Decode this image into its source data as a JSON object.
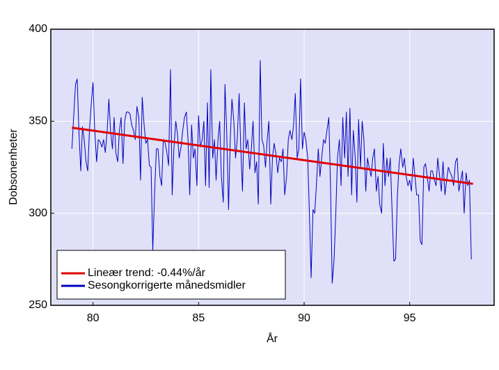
{
  "chart_data": {
    "type": "line",
    "xlabel": "År",
    "ylabel": "Dobsonenheter",
    "xlim": [
      78,
      99
    ],
    "xticks": [
      80,
      85,
      90,
      95
    ],
    "ylim": [
      250,
      400
    ],
    "yticks": [
      250,
      300,
      350,
      400
    ],
    "grid": true,
    "legend": "lower left",
    "background": "#e0e0f8",
    "series": [
      {
        "name": "Lineær trend: -0.44%/år",
        "color": "#e00000",
        "x": [
          79,
          98
        ],
        "values": [
          346.5,
          316
        ]
      },
      {
        "name": "Sesongkorrigerte månedsmidler",
        "color": "#0000c0",
        "x": [
          79,
          79.08,
          79.17,
          79.25,
          79.33,
          79.42,
          79.5,
          79.58,
          79.67,
          79.75,
          79.83,
          79.92,
          80,
          80.08,
          80.17,
          80.25,
          80.33,
          80.42,
          80.5,
          80.58,
          80.67,
          80.75,
          80.83,
          80.92,
          81,
          81.08,
          81.17,
          81.25,
          81.33,
          81.42,
          81.5,
          81.58,
          81.67,
          81.75,
          81.83,
          81.92,
          82,
          82.08,
          82.17,
          82.25,
          82.33,
          82.42,
          82.5,
          82.58,
          82.67,
          82.75,
          82.83,
          82.92,
          83,
          83.08,
          83.17,
          83.25,
          83.33,
          83.42,
          83.5,
          83.58,
          83.67,
          83.75,
          83.83,
          83.92,
          84,
          84.08,
          84.17,
          84.25,
          84.33,
          84.42,
          84.5,
          84.58,
          84.67,
          84.75,
          84.83,
          84.92,
          85,
          85.08,
          85.17,
          85.25,
          85.33,
          85.42,
          85.5,
          85.58,
          85.67,
          85.75,
          85.83,
          85.92,
          86,
          86.08,
          86.17,
          86.25,
          86.33,
          86.42,
          86.5,
          86.58,
          86.67,
          86.75,
          86.83,
          86.92,
          87,
          87.08,
          87.17,
          87.25,
          87.33,
          87.42,
          87.5,
          87.58,
          87.67,
          87.75,
          87.83,
          87.92,
          88,
          88.08,
          88.17,
          88.25,
          88.33,
          88.42,
          88.5,
          88.58,
          88.67,
          88.75,
          88.83,
          88.92,
          89,
          89.08,
          89.17,
          89.25,
          89.33,
          89.42,
          89.5,
          89.58,
          89.67,
          89.75,
          89.83,
          89.92,
          90,
          90.08,
          90.17,
          90.25,
          90.33,
          90.42,
          90.5,
          90.58,
          90.67,
          90.75,
          90.83,
          90.92,
          91,
          91.08,
          91.17,
          91.25,
          91.33,
          91.42,
          91.5,
          91.58,
          91.67,
          91.75,
          91.83,
          91.92,
          92,
          92.08,
          92.17,
          92.25,
          92.33,
          92.42,
          92.5,
          92.58,
          92.67,
          92.75,
          92.83,
          92.92,
          93,
          93.08,
          93.17,
          93.25,
          93.33,
          93.42,
          93.5,
          93.58,
          93.67,
          93.75,
          93.83,
          93.92,
          94,
          94.08,
          94.17,
          94.25,
          94.33,
          94.42,
          94.5,
          94.58,
          94.67,
          94.75,
          94.83,
          94.92,
          95,
          95.08,
          95.17,
          95.25,
          95.33,
          95.42,
          95.5,
          95.58,
          95.67,
          95.75,
          95.83,
          95.92,
          96,
          96.08,
          96.17,
          96.25,
          96.33,
          96.42,
          96.5,
          96.58,
          96.67,
          96.75,
          96.83,
          96.92,
          97,
          97.08,
          97.17,
          97.25,
          97.33,
          97.42,
          97.5,
          97.58,
          97.67,
          97.75,
          97.83,
          97.92
        ],
        "values": [
          335,
          352,
          370,
          373,
          345,
          323,
          347,
          340,
          328,
          323,
          345,
          360,
          371,
          345,
          328,
          340,
          339,
          336,
          340,
          333,
          345,
          362,
          345,
          335,
          352,
          333,
          328,
          345,
          352,
          327,
          350,
          355,
          355,
          354,
          348,
          345,
          340,
          358,
          352,
          318,
          363,
          348,
          338,
          340,
          326,
          325,
          280,
          312,
          335,
          335,
          320,
          315,
          340,
          338,
          333,
          326,
          378,
          310,
          335,
          350,
          343,
          330,
          336,
          345,
          352,
          355,
          340,
          310,
          348,
          330,
          335,
          315,
          353,
          336,
          340,
          350,
          315,
          360,
          314,
          378,
          330,
          340,
          318,
          340,
          350,
          320,
          306,
          370,
          345,
          302,
          340,
          362,
          350,
          330,
          340,
          365,
          335,
          312,
          360,
          335,
          340,
          324,
          335,
          350,
          322,
          328,
          305,
          383,
          340,
          337,
          325,
          340,
          350,
          305,
          330,
          338,
          332,
          322,
          330,
          328,
          335,
          310,
          320,
          340,
          345,
          340,
          348,
          365,
          330,
          335,
          373,
          335,
          344,
          340,
          330,
          300,
          265,
          302,
          300,
          315,
          335,
          320,
          330,
          340,
          338,
          345,
          352,
          315,
          262,
          275,
          300,
          330,
          340,
          315,
          352,
          330,
          355,
          320,
          357,
          310,
          345,
          330,
          306,
          351,
          325,
          350,
          340,
          312,
          330,
          325,
          320,
          330,
          335,
          312,
          320,
          305,
          300,
          338,
          315,
          330,
          320,
          330,
          300,
          274,
          275,
          310,
          327,
          335,
          325,
          330,
          320,
          315,
          318,
          312,
          330,
          320,
          310,
          310,
          285,
          283,
          325,
          327,
          320,
          312,
          323,
          323,
          318,
          315,
          330,
          320,
          312,
          328,
          310,
          318,
          325,
          322,
          320,
          315,
          328,
          330,
          312,
          318,
          323,
          300,
          322,
          315,
          318,
          275
        ]
      }
    ]
  }
}
